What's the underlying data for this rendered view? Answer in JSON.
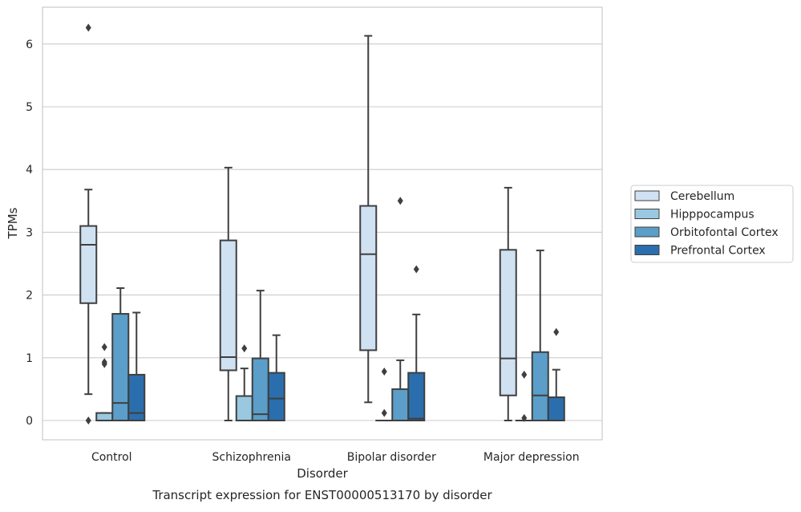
{
  "chart_data": {
    "type": "box",
    "caption": "Transcript expression for ENST00000513170 by disorder",
    "xlabel": "Disorder",
    "ylabel": "TPMs",
    "ylim": [
      -0.3,
      6.6
    ],
    "yticks": [
      "0",
      "1",
      "2",
      "3",
      "4",
      "5",
      "6"
    ],
    "grid": "horizontal",
    "legend_position": "right",
    "categories": [
      "Control",
      "Schizophrenia",
      "Bipolar disorder",
      "Major depression"
    ],
    "series": [
      {
        "name": "Cerebellum",
        "color": "#d0e1f2",
        "boxes": [
          {
            "whisker_low": 0.42,
            "q1": 1.87,
            "median": 2.8,
            "q3": 3.1,
            "whisker_high": 3.68,
            "outliers": [
              6.26,
              0.0
            ]
          },
          {
            "whisker_low": 0.0,
            "q1": 0.8,
            "median": 1.01,
            "q3": 2.87,
            "whisker_high": 4.03,
            "outliers": []
          },
          {
            "whisker_low": 0.29,
            "q1": 1.12,
            "median": 2.65,
            "q3": 3.42,
            "whisker_high": 6.13,
            "outliers": []
          },
          {
            "whisker_low": 0.0,
            "q1": 0.4,
            "median": 0.99,
            "q3": 2.72,
            "whisker_high": 3.71,
            "outliers": []
          }
        ]
      },
      {
        "name": "Hipppocampus",
        "color": "#9ac8e0",
        "boxes": [
          {
            "whisker_low": 0.0,
            "q1": 0.0,
            "median": 0.0,
            "q3": 0.12,
            "whisker_high": 0.12,
            "outliers": [
              1.17,
              0.93,
              0.9
            ]
          },
          {
            "whisker_low": 0.0,
            "q1": 0.0,
            "median": 0.0,
            "q3": 0.39,
            "whisker_high": 0.83,
            "outliers": [
              1.15
            ]
          },
          {
            "whisker_low": 0.0,
            "q1": 0.0,
            "median": 0.0,
            "q3": 0.0,
            "whisker_high": 0.0,
            "outliers": [
              0.78,
              0.12
            ]
          },
          {
            "whisker_low": 0.0,
            "q1": 0.0,
            "median": 0.0,
            "q3": 0.0,
            "whisker_high": 0.0,
            "outliers": [
              0.73,
              0.04
            ]
          }
        ]
      },
      {
        "name": "Orbitofontal Cortex",
        "color": "#5a9ec9",
        "boxes": [
          {
            "whisker_low": 0.0,
            "q1": 0.0,
            "median": 0.28,
            "q3": 1.7,
            "whisker_high": 2.11,
            "outliers": []
          },
          {
            "whisker_low": 0.0,
            "q1": 0.0,
            "median": 0.1,
            "q3": 0.99,
            "whisker_high": 2.07,
            "outliers": []
          },
          {
            "whisker_low": 0.0,
            "q1": 0.0,
            "median": 0.0,
            "q3": 0.5,
            "whisker_high": 0.96,
            "outliers": [
              3.5
            ]
          },
          {
            "whisker_low": 0.0,
            "q1": 0.0,
            "median": 0.4,
            "q3": 1.09,
            "whisker_high": 2.71,
            "outliers": []
          }
        ]
      },
      {
        "name": "Prefrontal Cortex",
        "color": "#2a6ead",
        "boxes": [
          {
            "whisker_low": 0.0,
            "q1": 0.0,
            "median": 0.12,
            "q3": 0.73,
            "whisker_high": 1.72,
            "outliers": []
          },
          {
            "whisker_low": 0.0,
            "q1": 0.0,
            "median": 0.35,
            "q3": 0.76,
            "whisker_high": 1.36,
            "outliers": []
          },
          {
            "whisker_low": 0.0,
            "q1": 0.0,
            "median": 0.03,
            "q3": 0.76,
            "whisker_high": 1.69,
            "outliers": [
              2.41
            ]
          },
          {
            "whisker_low": 0.0,
            "q1": 0.0,
            "median": 0.0,
            "q3": 0.37,
            "whisker_high": 0.81,
            "outliers": [
              1.41
            ]
          }
        ]
      }
    ]
  }
}
